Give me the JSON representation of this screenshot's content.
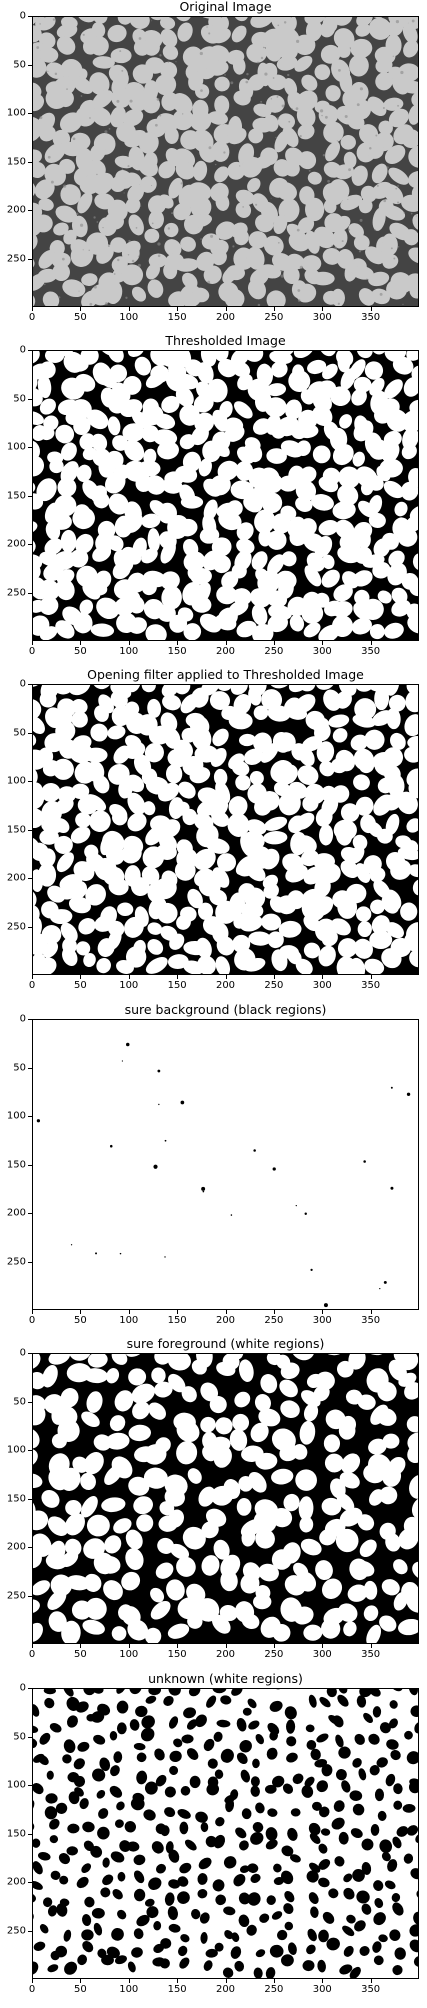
{
  "figure": {
    "panels": [
      {
        "name": "original-image-panel",
        "title": "Original Image",
        "style": "gray-grains"
      },
      {
        "name": "thresholded-image-panel",
        "title": "Thresholded Image",
        "style": "binary-thin"
      },
      {
        "name": "opening-filter-panel",
        "title": "Opening filter applied to Thresholded Image",
        "style": "binary-thin"
      },
      {
        "name": "sure-background-panel",
        "title": "sure background (black regions)",
        "style": "mostly-white"
      },
      {
        "name": "sure-foreground-panel",
        "title": "sure foreground (white regions)",
        "style": "binary-thick"
      },
      {
        "name": "unknown-panel",
        "title": "unknown (white regions)",
        "style": "inverted"
      }
    ],
    "x_ticks": [
      "0",
      "50",
      "100",
      "150",
      "200",
      "250",
      "300",
      "350"
    ],
    "y_ticks": [
      "0",
      "50",
      "100",
      "150",
      "200",
      "250"
    ],
    "x_range": [
      0,
      400
    ],
    "y_range": [
      0,
      300
    ],
    "colors": {
      "ink": "#000000",
      "paper": "#ffffff",
      "gray_bg": "#c9c9c9",
      "gray_dark": "#444444"
    }
  }
}
